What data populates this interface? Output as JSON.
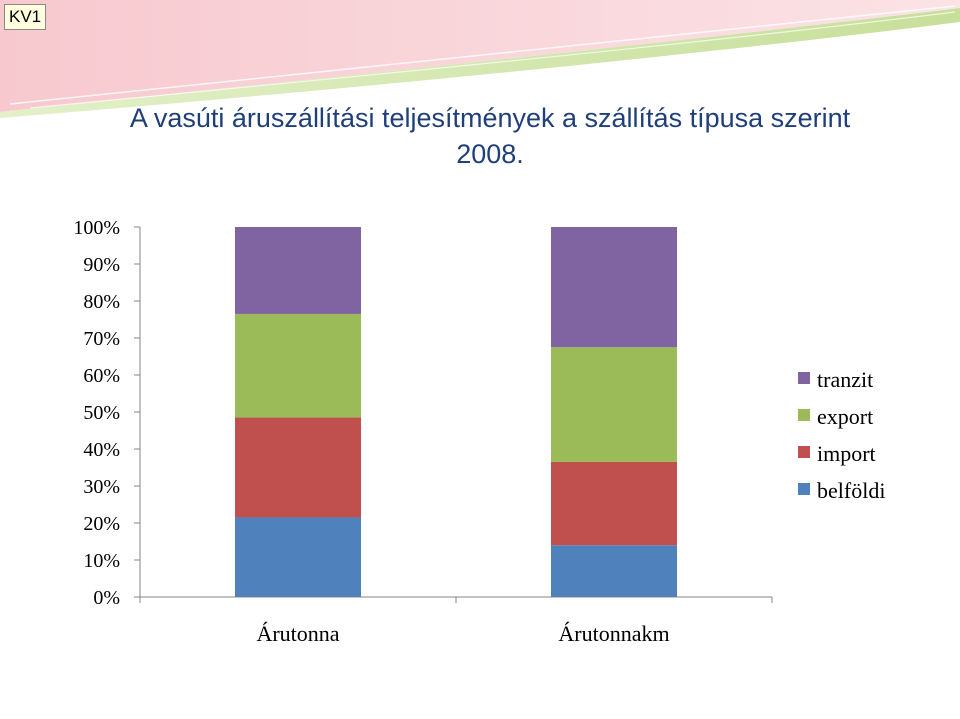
{
  "slide": {
    "tag": "KV1"
  },
  "colors": {
    "belfoldi": "#4f81bd",
    "import": "#c0504d",
    "export": "#9bbb59",
    "tranzit": "#8064a2",
    "title": "#1f3f7a"
  },
  "chart_data": {
    "type": "bar",
    "stacked": "percent",
    "title": "A vasúti áruszállítási teljesítmények a szállítás típusa szerint 2008.",
    "title_lines": [
      "A vasúti áruszállítási teljesítmények a szállítás típusa szerint",
      "2008."
    ],
    "categories": [
      "Árutonna",
      "Árutonnakm"
    ],
    "series": [
      {
        "name": "belföldi",
        "color": "#4f81bd",
        "values": [
          21.5,
          14
        ]
      },
      {
        "name": "import",
        "color": "#c0504d",
        "values": [
          27,
          22.5
        ]
      },
      {
        "name": "export",
        "color": "#9bbb59",
        "values": [
          28,
          31
        ]
      },
      {
        "name": "tranzit",
        "color": "#8064a2",
        "values": [
          23.5,
          32.5
        ]
      }
    ],
    "y_ticks": [
      "0%",
      "10%",
      "20%",
      "30%",
      "40%",
      "50%",
      "60%",
      "70%",
      "80%",
      "90%",
      "100%"
    ],
    "ylim": [
      0,
      100
    ],
    "grid": false,
    "legend_position": "right",
    "legend_order": [
      "tranzit",
      "export",
      "import",
      "belföldi"
    ]
  }
}
